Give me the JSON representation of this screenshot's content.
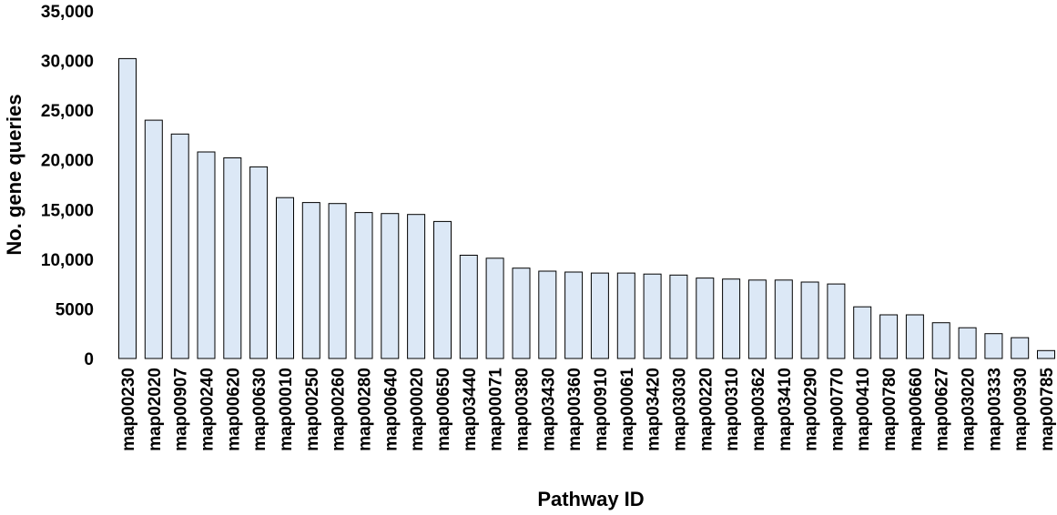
{
  "chart_data": {
    "type": "bar",
    "title": "",
    "xlabel": "Pathway ID",
    "ylabel": "No. gene queries",
    "ylim": [
      0,
      35000
    ],
    "yticks": [
      {
        "value": 0,
        "label": "0"
      },
      {
        "value": 5000,
        "label": "5000"
      },
      {
        "value": 10000,
        "label": "10,000"
      },
      {
        "value": 15000,
        "label": "15,000"
      },
      {
        "value": 20000,
        "label": "20,000"
      },
      {
        "value": 25000,
        "label": "25,000"
      },
      {
        "value": 30000,
        "label": "30,000"
      },
      {
        "value": 35000,
        "label": "35,000"
      }
    ],
    "grid": false,
    "bar_color": "#dce8f6",
    "categories": [
      "map00230",
      "map02020",
      "map00907",
      "map00240",
      "map00620",
      "map00630",
      "map00010",
      "map00250",
      "map00260",
      "map00280",
      "map00640",
      "map00020",
      "map00650",
      "map03440",
      "map00071",
      "map00380",
      "map03430",
      "map00360",
      "map00910",
      "map00061",
      "map03420",
      "map03030",
      "map00220",
      "map00310",
      "map00362",
      "map03410",
      "map00290",
      "map00770",
      "map00410",
      "map00780",
      "map00660",
      "map00627",
      "map03020",
      "map00333",
      "map00930",
      "map00785"
    ],
    "values": [
      30200,
      24000,
      22600,
      20800,
      20200,
      19300,
      16200,
      15700,
      15600,
      14700,
      14600,
      14500,
      13800,
      10400,
      10100,
      9100,
      8800,
      8700,
      8600,
      8600,
      8500,
      8400,
      8100,
      8000,
      7900,
      7900,
      7700,
      7500,
      5200,
      4400,
      4400,
      3600,
      3100,
      2500,
      2100,
      800
    ]
  }
}
